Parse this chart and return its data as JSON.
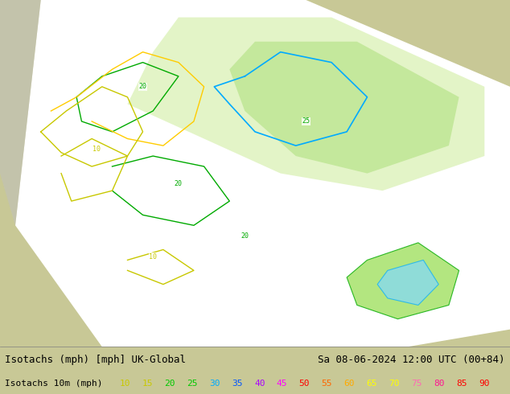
{
  "title_left": "Isotachs (mph) [mph] UK-Global",
  "title_right": "Sa 08-06-2024 12:00 UTC (00+84)",
  "legend_label": "Isotachs 10m (mph)",
  "legend_values": [
    10,
    15,
    20,
    25,
    30,
    35,
    40,
    45,
    50,
    55,
    60,
    65,
    70,
    75,
    80,
    85,
    90
  ],
  "legend_colors": [
    "#c8c800",
    "#c8c800",
    "#00c800",
    "#00c800",
    "#00aaff",
    "#00aaff",
    "#0000ff",
    "#aa00ff",
    "#ff00ff",
    "#ff0000",
    "#ff6600",
    "#ffaa00",
    "#ffff00",
    "#ffff00",
    "#ff69b4",
    "#ff1493",
    "#ff0000"
  ],
  "bg_color": "#c8c896",
  "map_bg": "#ffffff",
  "shadow_color": "#d0d0d0",
  "bottom_bar_color": "#ffffff",
  "fig_width": 6.34,
  "fig_height": 4.9,
  "dpi": 100,
  "isotach_colors": {
    "10": "#c8c800",
    "15": "#c8c800",
    "20": "#00c800",
    "25": "#00c800",
    "30": "#00aaff",
    "35": "#0000ff",
    "40": "#aa00ff",
    "45": "#ff00ff",
    "50": "#ff0000",
    "55": "#ff6600",
    "60": "#ffaa00",
    "65": "#ffff00",
    "70": "#ffff00",
    "75": "#ff69b4",
    "80": "#ff1493",
    "85": "#ff0000",
    "90": "#ff0000"
  },
  "fill_colors": {
    "10_15": "#f0f8e0",
    "15_20": "#e8f5d0",
    "20_25": "#d4f0a0",
    "25_30": "#b8e878",
    "30_35": "#90d850",
    "35_40": "#68c830",
    "40_45": "#50b820",
    "45_50": "#38a810"
  },
  "font_family": "monospace",
  "bottom_text_color": "#000000",
  "title_fontsize": 9,
  "legend_fontsize": 8
}
